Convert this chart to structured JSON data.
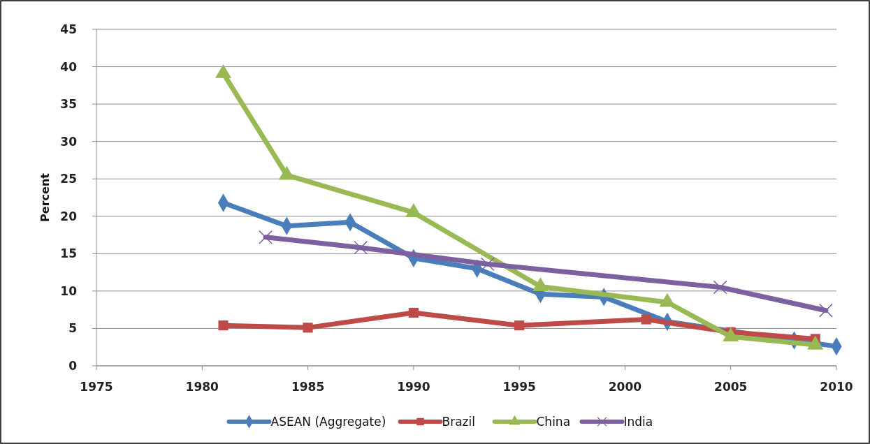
{
  "chart_data": {
    "type": "line",
    "ylabel": "Percent",
    "xlim": [
      1975,
      2010
    ],
    "xticks": [
      1975,
      1980,
      1985,
      1990,
      1995,
      2000,
      2005,
      2010
    ],
    "ylim": [
      0,
      45
    ],
    "yticks": [
      0,
      5,
      10,
      15,
      20,
      25,
      30,
      35,
      40,
      45
    ],
    "grid": "y",
    "legend": "bottom",
    "series": [
      {
        "name": "ASEAN (Aggregate)",
        "color": "#4a7ebb",
        "marker": "diamond",
        "x": [
          1981,
          1984,
          1987,
          1990,
          1993,
          1996,
          1999,
          2002,
          2005,
          2008,
          2010
        ],
        "values": [
          21.8,
          18.7,
          19.2,
          14.4,
          13.0,
          9.6,
          9.2,
          5.9,
          null,
          3.4,
          2.6
        ]
      },
      {
        "name": "Brazil",
        "color": "#be4b48",
        "marker": "square",
        "x": [
          1981,
          1985,
          1990,
          1995,
          2001,
          2005,
          2009
        ],
        "values": [
          5.4,
          5.1,
          7.1,
          5.4,
          6.2,
          4.5,
          3.6
        ]
      },
      {
        "name": "China",
        "color": "#98b954",
        "marker": "triangle",
        "x": [
          1981,
          1984,
          1990,
          1996,
          2002,
          2005,
          2009
        ],
        "values": [
          39.1,
          25.5,
          20.5,
          10.6,
          8.5,
          3.9,
          2.8
        ]
      },
      {
        "name": "India",
        "color": "#7d60a0",
        "marker": "cross",
        "x": [
          1983,
          1987.5,
          1993.5,
          2004.5,
          2009.5
        ],
        "values": [
          17.2,
          15.8,
          13.6,
          10.5,
          7.4
        ]
      }
    ]
  }
}
